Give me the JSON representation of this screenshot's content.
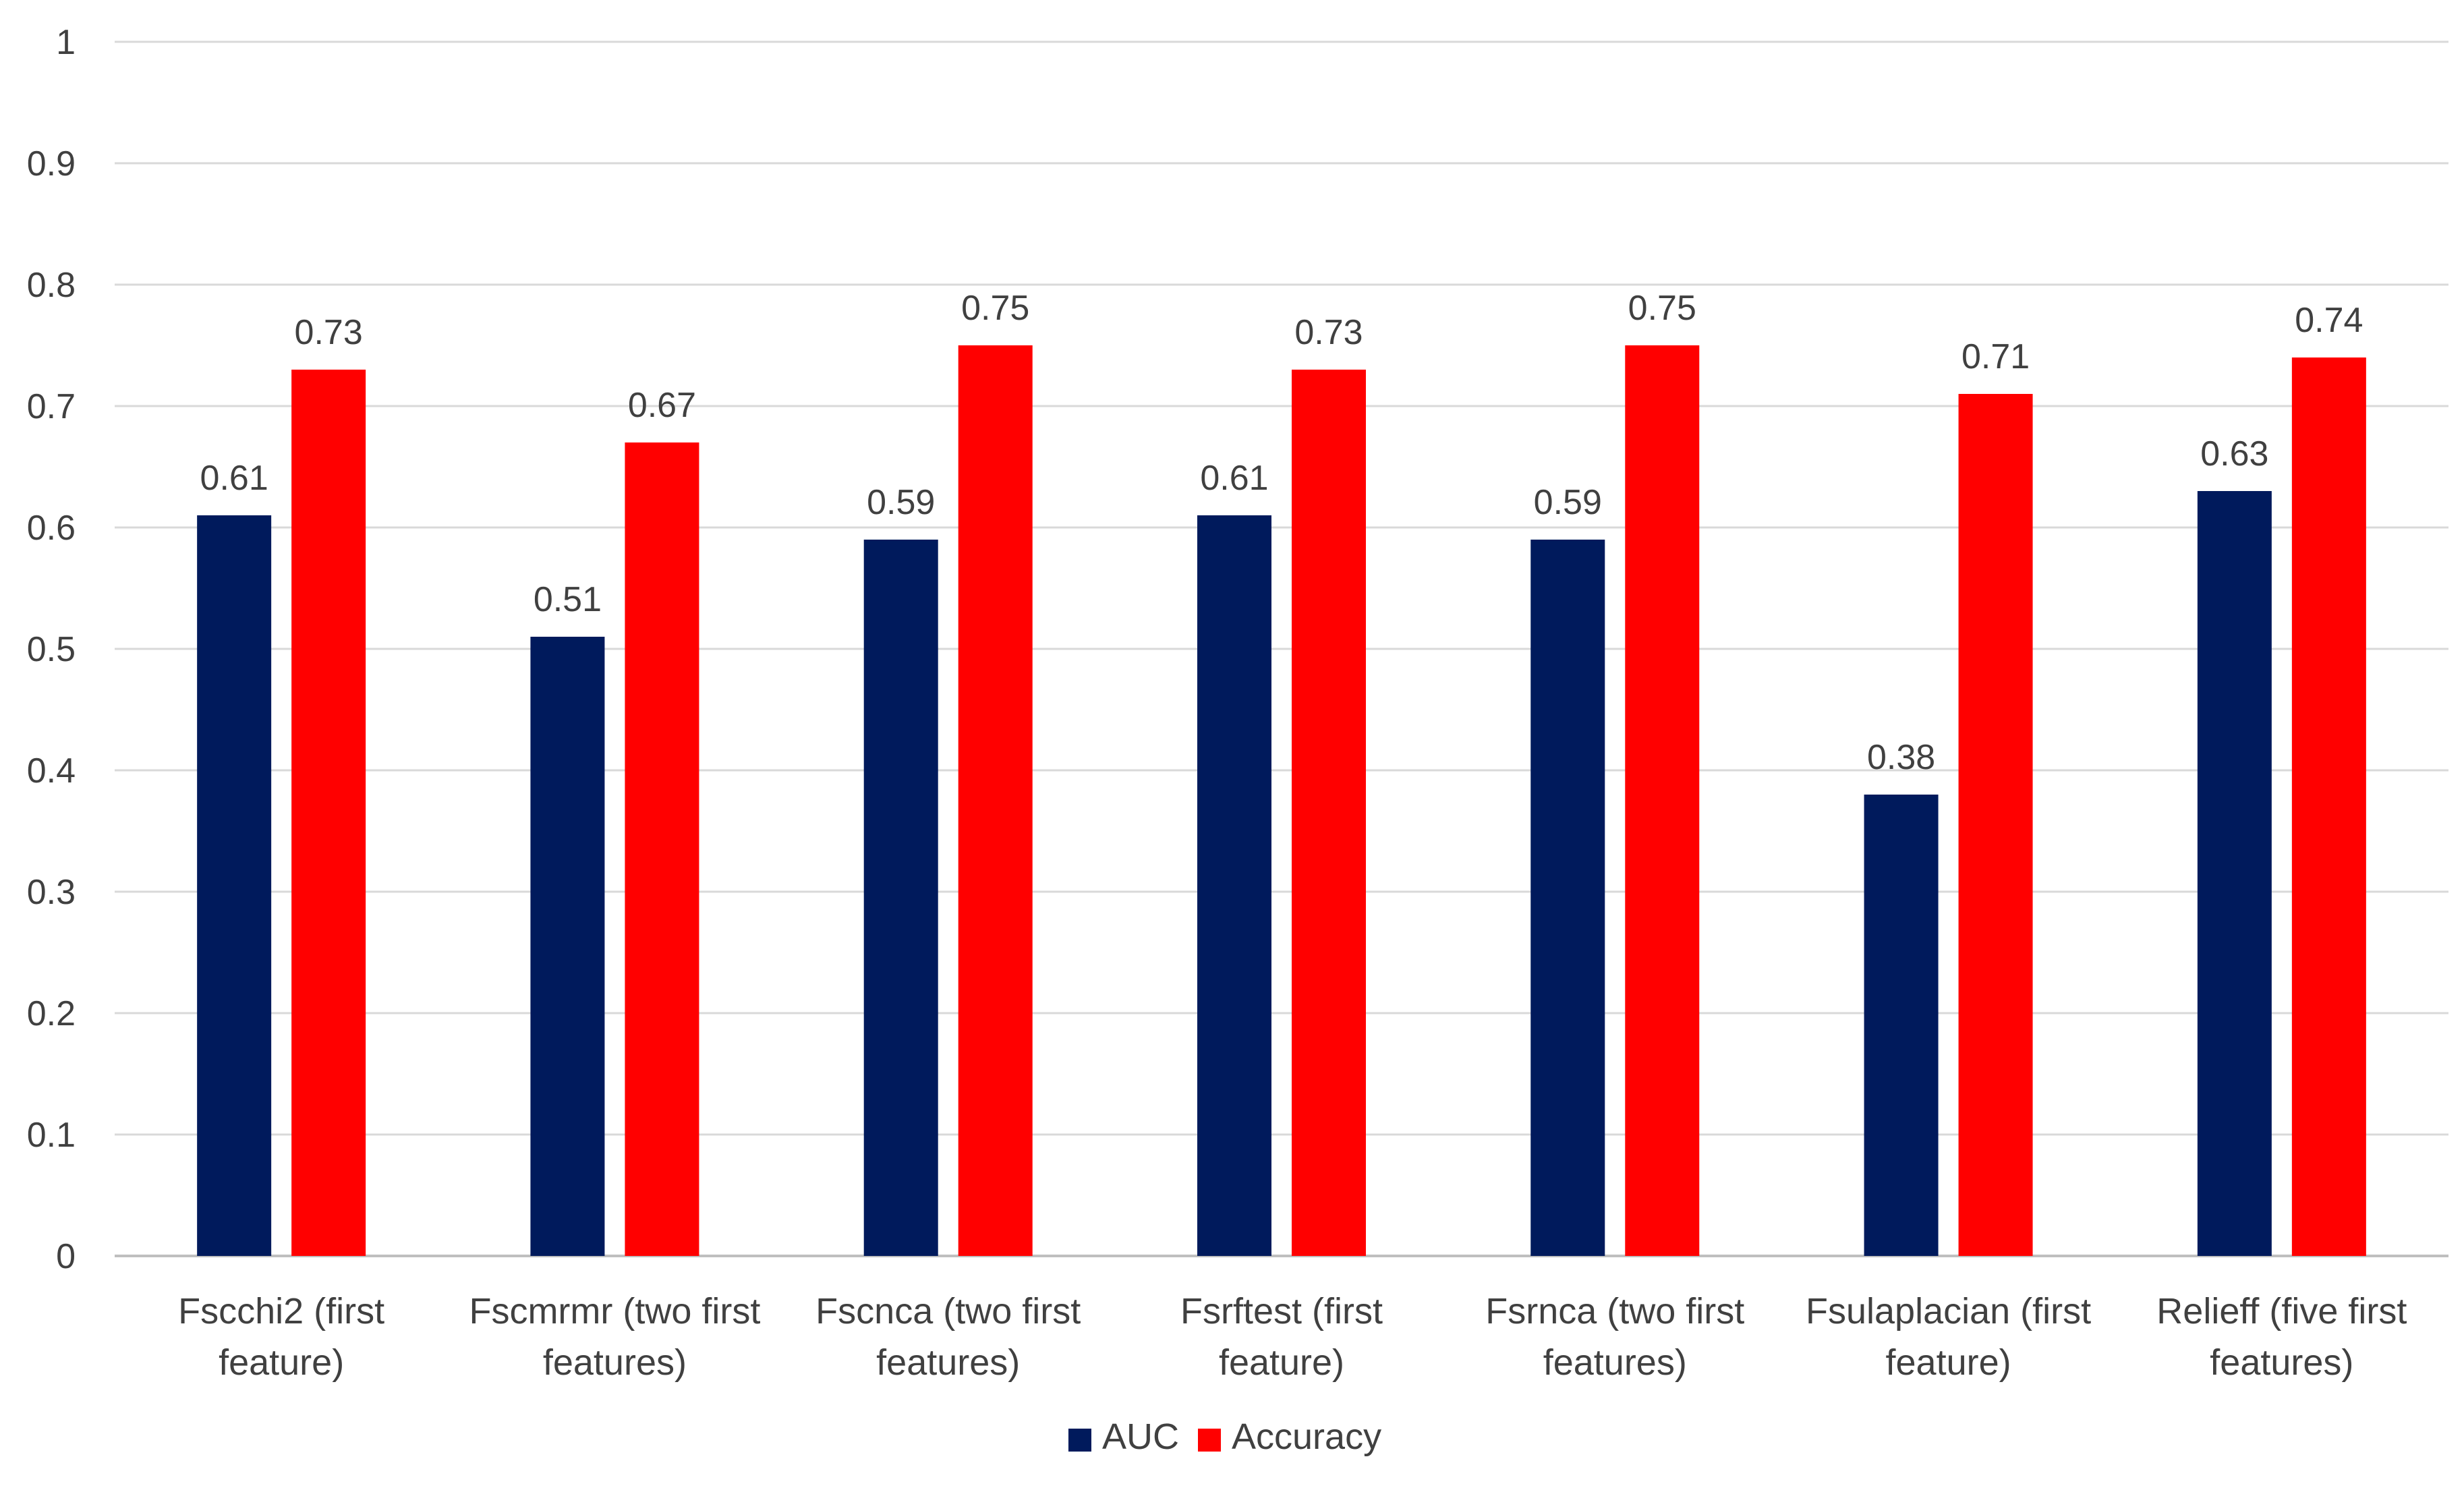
{
  "chart_data": {
    "type": "bar",
    "title": "",
    "xlabel": "",
    "ylabel": "",
    "ylim": [
      0,
      1
    ],
    "yticks": [
      0,
      0.1,
      0.2,
      0.3,
      0.4,
      0.5,
      0.6,
      0.7,
      0.8,
      0.9,
      1
    ],
    "ytick_labels": [
      "0",
      "0.1",
      "0.2",
      "0.3",
      "0.4",
      "0.5",
      "0.6",
      "0.7",
      "0.8",
      "0.9",
      "1"
    ],
    "grid": true,
    "legend_position": "bottom-center",
    "categories": [
      [
        "Fscchi2 (first",
        "feature)"
      ],
      [
        "Fscmrmr (two first",
        "features)"
      ],
      [
        "Fscnca (two first",
        "features)"
      ],
      [
        "Fsrftest (first",
        "feature)"
      ],
      [
        "Fsrnca (two first",
        "features)"
      ],
      [
        "Fsulaplacian (first",
        "feature)"
      ],
      [
        "Relieff (five first",
        "features)"
      ]
    ],
    "series": [
      {
        "name": "AUC",
        "color": "#001a5c",
        "values": [
          0.61,
          0.51,
          0.59,
          0.61,
          0.59,
          0.38,
          0.63
        ],
        "labels": [
          "0.61",
          "0.51",
          "0.59",
          "0.61",
          "0.59",
          "0.38",
          "0.63"
        ]
      },
      {
        "name": "Accuracy",
        "color": "#ff0000",
        "values": [
          0.73,
          0.67,
          0.75,
          0.73,
          0.75,
          0.71,
          0.74
        ],
        "labels": [
          "0.73",
          "0.67",
          "0.75",
          "0.73",
          "0.75",
          "0.71",
          "0.74"
        ]
      }
    ]
  }
}
